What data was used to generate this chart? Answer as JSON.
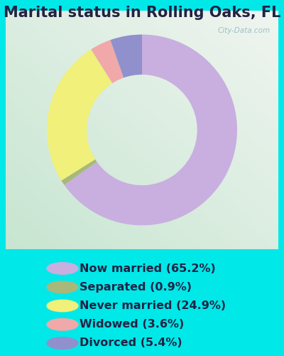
{
  "title": "Marital status in Rolling Oaks, FL",
  "slices": [
    {
      "label": "Now married (65.2%)",
      "value": 65.2,
      "color": "#c9aee0"
    },
    {
      "label": "Separated (0.9%)",
      "value": 0.9,
      "color": "#a8b87a"
    },
    {
      "label": "Never married (24.9%)",
      "value": 24.9,
      "color": "#f0f07a"
    },
    {
      "label": "Widowed (3.6%)",
      "value": 3.6,
      "color": "#f0a8a8"
    },
    {
      "label": "Divorced (5.4%)",
      "value": 5.4,
      "color": "#9090cc"
    }
  ],
  "bg_outer": "#00e8e8",
  "watermark": "City-Data.com",
  "title_fontsize": 15,
  "legend_fontsize": 11.5,
  "donut_width": 0.42,
  "start_angle": 90,
  "title_color": "#222244"
}
